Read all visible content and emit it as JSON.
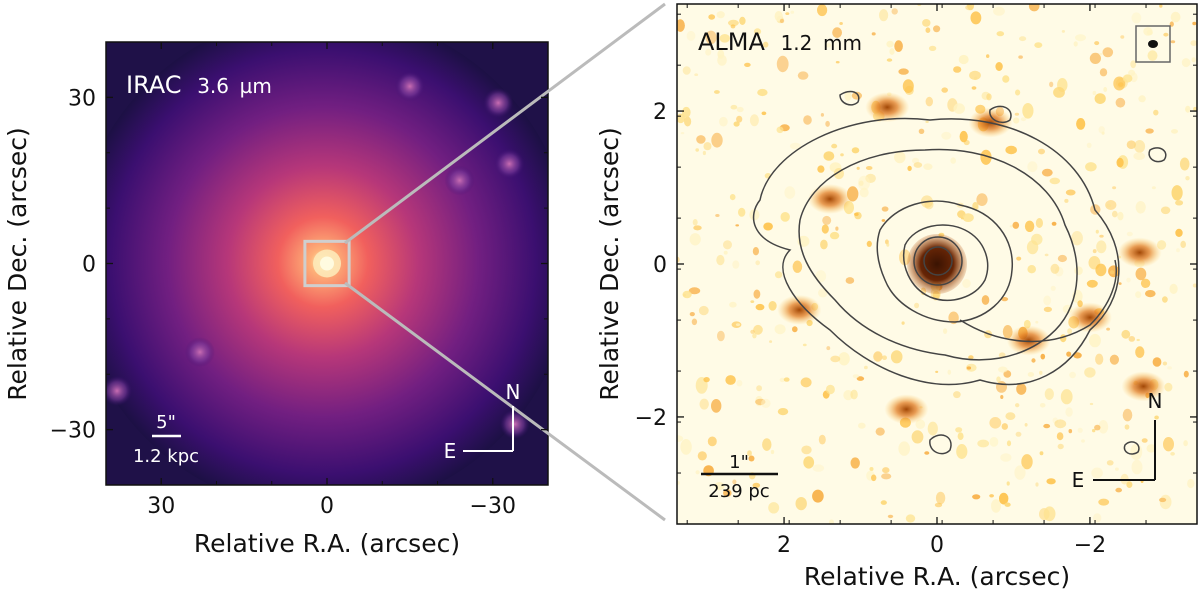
{
  "chart_data": [
    {
      "type": "heatmap",
      "panel": "left",
      "title": "IRAC 3.6 µm",
      "title_main": "IRAC",
      "title_band": "3.6",
      "title_unit": "µm",
      "xlabel": "Relative R.A. (arcsec)",
      "ylabel": "Relative Dec. (arcsec)",
      "xlim": [
        40,
        -40
      ],
      "ylim": [
        -40,
        40
      ],
      "xticks": [
        30,
        0,
        -30
      ],
      "xtick_labels": [
        "30",
        "0",
        "−30"
      ],
      "yticks": [
        30,
        0,
        -30
      ],
      "ytick_labels": [
        "30",
        "0",
        "−30"
      ],
      "colormap": "magma",
      "zoom_box": {
        "x": [
          4,
          -4
        ],
        "y": [
          -4,
          4
        ]
      },
      "scalebar": {
        "angle": "5\"",
        "length_arcsec": 5,
        "physical": "1.2 kpc"
      },
      "compass": {
        "north": "N",
        "east": "E"
      },
      "sources": [
        {
          "ra": 0,
          "dec": 0,
          "kind": "central galaxy"
        },
        {
          "ra": -15,
          "dec": 32
        },
        {
          "ra": -31,
          "dec": 29
        },
        {
          "ra": -33,
          "dec": 18
        },
        {
          "ra": -24,
          "dec": 15
        },
        {
          "ra": 38,
          "dec": -23
        },
        {
          "ra": -34,
          "dec": -29
        },
        {
          "ra": 23,
          "dec": -16
        }
      ]
    },
    {
      "type": "heatmap",
      "panel": "right",
      "title": "ALMA 1.2 mm",
      "title_main": "ALMA",
      "title_band": "1.2",
      "title_unit": "mm",
      "xlabel": "Relative R.A. (arcsec)",
      "ylabel": "Relative Dec. (arcsec)",
      "xlim": [
        3.4,
        -3.4
      ],
      "ylim": [
        -3.4,
        3.4
      ],
      "xticks": [
        2,
        0,
        -2
      ],
      "xtick_labels": [
        "2",
        "0",
        "−2"
      ],
      "yticks": [
        2,
        0,
        -2
      ],
      "ytick_labels": [
        "2",
        "0",
        "−2"
      ],
      "colormap": "YlOrBr",
      "overlay": "contours",
      "scalebar": {
        "angle": "1\"",
        "length_arcsec": 1,
        "physical": "239 pc"
      },
      "compass": {
        "north": "N",
        "east": "E"
      },
      "beam_box": true,
      "emission": [
        {
          "ra": 0.0,
          "dec": 0.0,
          "kind": "nucleus"
        },
        {
          "ra": 0.65,
          "dec": 2.05
        },
        {
          "ra": -0.7,
          "dec": 1.85
        },
        {
          "ra": -2.65,
          "dec": 0.15
        },
        {
          "ra": -2.0,
          "dec": -0.7
        },
        {
          "ra": -1.2,
          "dec": -1.0
        },
        {
          "ra": 1.8,
          "dec": -0.6
        },
        {
          "ra": 1.4,
          "dec": 0.85
        },
        {
          "ra": 0.4,
          "dec": -1.9
        },
        {
          "ra": -2.7,
          "dec": -1.6
        }
      ]
    }
  ]
}
